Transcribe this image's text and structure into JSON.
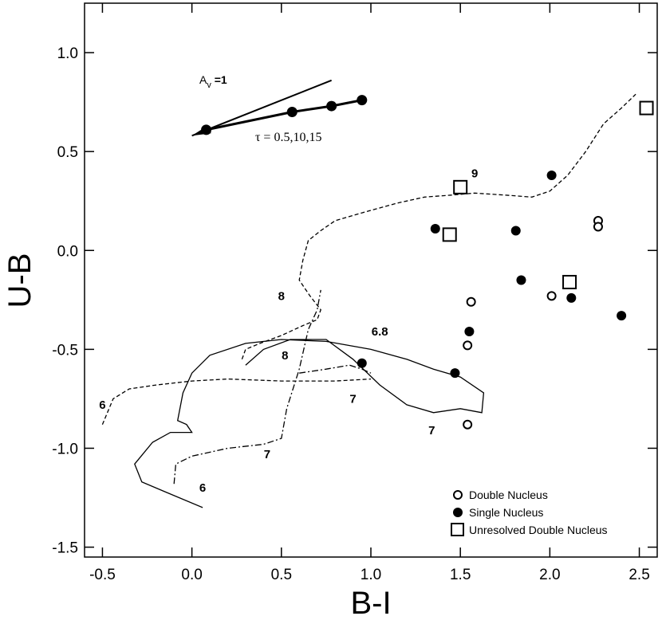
{
  "chart_data": {
    "type": "scatter",
    "title": "",
    "xlabel": "B-I",
    "ylabel": "U-B",
    "xlim": [
      -0.6,
      2.6
    ],
    "ylim": [
      -1.55,
      1.25
    ],
    "x_ticks": [
      "-0.5",
      "0.0",
      "0.5",
      "1.0",
      "1.5",
      "2.0",
      "2.5"
    ],
    "x_tick_values": [
      -0.5,
      0.0,
      0.5,
      1.0,
      1.5,
      2.0,
      2.5
    ],
    "y_ticks": [
      "1.0",
      "0.5",
      "0.0",
      "-0.5",
      "-1.0",
      "-1.5"
    ],
    "y_tick_values": [
      1.0,
      0.5,
      0.0,
      -0.5,
      -1.0,
      -1.5
    ],
    "grid": false,
    "legend_position": "bottom-right",
    "series": [
      {
        "name": "Double Nucleus",
        "marker": "open-circle",
        "points": [
          {
            "x": 1.56,
            "y": -0.26
          },
          {
            "x": 1.54,
            "y": -0.48
          },
          {
            "x": 2.01,
            "y": -0.23
          },
          {
            "x": 1.54,
            "y": -0.88
          },
          {
            "x": 2.27,
            "y": 0.15
          },
          {
            "x": 2.27,
            "y": 0.12
          }
        ]
      },
      {
        "name": "Single Nucleus",
        "marker": "filled-circle",
        "points": [
          {
            "x": 2.01,
            "y": 0.38
          },
          {
            "x": 1.36,
            "y": 0.11
          },
          {
            "x": 1.81,
            "y": 0.1
          },
          {
            "x": 1.84,
            "y": -0.15
          },
          {
            "x": 2.12,
            "y": -0.24
          },
          {
            "x": 2.4,
            "y": -0.33
          },
          {
            "x": 1.55,
            "y": -0.41
          },
          {
            "x": 0.95,
            "y": -0.57
          },
          {
            "x": 1.47,
            "y": -0.62
          }
        ]
      },
      {
        "name": "Unresolved Double Nucleus",
        "marker": "open-square",
        "points": [
          {
            "x": 2.54,
            "y": 0.72
          },
          {
            "x": 1.5,
            "y": 0.32
          },
          {
            "x": 1.44,
            "y": 0.08
          },
          {
            "x": 2.11,
            "y": -0.16
          }
        ]
      }
    ],
    "tracks": [
      {
        "style": "dashed",
        "points": [
          [
            -0.5,
            -0.88
          ],
          [
            -0.44,
            -0.75
          ],
          [
            -0.35,
            -0.7
          ],
          [
            -0.2,
            -0.68
          ],
          [
            0.0,
            -0.66
          ],
          [
            0.2,
            -0.65
          ],
          [
            0.5,
            -0.66
          ],
          [
            0.8,
            -0.66
          ],
          [
            1.0,
            -0.65
          ]
        ],
        "labels": [
          {
            "text": "6",
            "x": -0.5,
            "y": -0.8
          }
        ]
      },
      {
        "style": "dashed",
        "points": [
          [
            0.28,
            -0.55
          ],
          [
            0.3,
            -0.5
          ],
          [
            0.38,
            -0.47
          ],
          [
            0.5,
            -0.43
          ],
          [
            0.62,
            -0.38
          ],
          [
            0.7,
            -0.35
          ],
          [
            0.72,
            -0.3
          ],
          [
            0.66,
            -0.23
          ],
          [
            0.6,
            -0.15
          ],
          [
            0.62,
            -0.05
          ],
          [
            0.65,
            0.05
          ],
          [
            0.72,
            0.1
          ],
          [
            0.8,
            0.15
          ],
          [
            0.95,
            0.19
          ],
          [
            1.15,
            0.24
          ],
          [
            1.3,
            0.27
          ],
          [
            1.45,
            0.28
          ],
          [
            1.58,
            0.29
          ],
          [
            1.75,
            0.28
          ],
          [
            1.9,
            0.27
          ],
          [
            2.0,
            0.3
          ],
          [
            2.1,
            0.38
          ],
          [
            2.2,
            0.5
          ],
          [
            2.3,
            0.64
          ],
          [
            2.4,
            0.72
          ],
          [
            2.48,
            0.79
          ]
        ],
        "labels": [
          {
            "text": "9",
            "x": 1.58,
            "y": 0.37
          },
          {
            "text": "8",
            "x": 0.5,
            "y": -0.25
          }
        ]
      },
      {
        "style": "dash-dot",
        "points": [
          [
            -0.1,
            -1.18
          ],
          [
            -0.09,
            -1.08
          ],
          [
            0.0,
            -1.04
          ],
          [
            0.2,
            -1.0
          ],
          [
            0.4,
            -0.98
          ],
          [
            0.5,
            -0.95
          ],
          [
            0.53,
            -0.8
          ],
          [
            0.6,
            -0.6
          ],
          [
            0.65,
            -0.4
          ],
          [
            0.7,
            -0.3
          ],
          [
            0.72,
            -0.2
          ]
        ],
        "labels": [
          {
            "text": "7",
            "x": 0.42,
            "y": -1.05
          },
          {
            "text": "8",
            "x": 0.52,
            "y": -0.55
          }
        ]
      },
      {
        "style": "solid",
        "points": [
          [
            0.06,
            -1.3
          ],
          [
            -0.15,
            -1.22
          ],
          [
            -0.28,
            -1.17
          ],
          [
            -0.32,
            -1.08
          ],
          [
            -0.22,
            -0.97
          ],
          [
            -0.12,
            -0.92
          ],
          [
            0.0,
            -0.92
          ],
          [
            -0.03,
            -0.88
          ],
          [
            -0.08,
            -0.86
          ],
          [
            -0.05,
            -0.72
          ],
          [
            0.0,
            -0.62
          ],
          [
            0.1,
            -0.53
          ],
          [
            0.3,
            -0.47
          ],
          [
            0.5,
            -0.45
          ],
          [
            0.75,
            -0.46
          ],
          [
            1.0,
            -0.5
          ],
          [
            1.2,
            -0.55
          ],
          [
            1.35,
            -0.6
          ],
          [
            1.5,
            -0.64
          ],
          [
            1.63,
            -0.72
          ],
          [
            1.62,
            -0.82
          ],
          [
            1.5,
            -0.8
          ],
          [
            1.35,
            -0.82
          ],
          [
            1.2,
            -0.78
          ],
          [
            1.05,
            -0.68
          ],
          [
            0.9,
            -0.55
          ],
          [
            0.75,
            -0.45
          ],
          [
            0.55,
            -0.45
          ],
          [
            0.4,
            -0.5
          ],
          [
            0.3,
            -0.58
          ]
        ],
        "labels": [
          {
            "text": "6",
            "x": 0.06,
            "y": -1.22
          },
          {
            "text": "6.8",
            "x": 1.05,
            "y": -0.43
          },
          {
            "text": "7",
            "x": 1.34,
            "y": -0.93
          }
        ]
      },
      {
        "style": "dash-dot",
        "points": [
          [
            0.6,
            -0.62
          ],
          [
            0.75,
            -0.6
          ],
          [
            0.88,
            -0.58
          ],
          [
            0.95,
            -0.6
          ],
          [
            1.0,
            -0.62
          ]
        ],
        "labels": [
          {
            "text": "7",
            "x": 0.9,
            "y": -0.77
          }
        ]
      }
    ],
    "reddening_vector": {
      "label": "A",
      "label_subscript": "v",
      "label_suffix": "=1",
      "from": [
        0.0,
        0.58
      ],
      "to": [
        0.78,
        0.86
      ]
    },
    "tau_track": {
      "label": "τ = 0.5,10,15",
      "points": [
        [
          0.08,
          0.61
        ],
        [
          0.56,
          0.7
        ],
        [
          0.78,
          0.73
        ],
        [
          0.95,
          0.76
        ]
      ]
    }
  }
}
